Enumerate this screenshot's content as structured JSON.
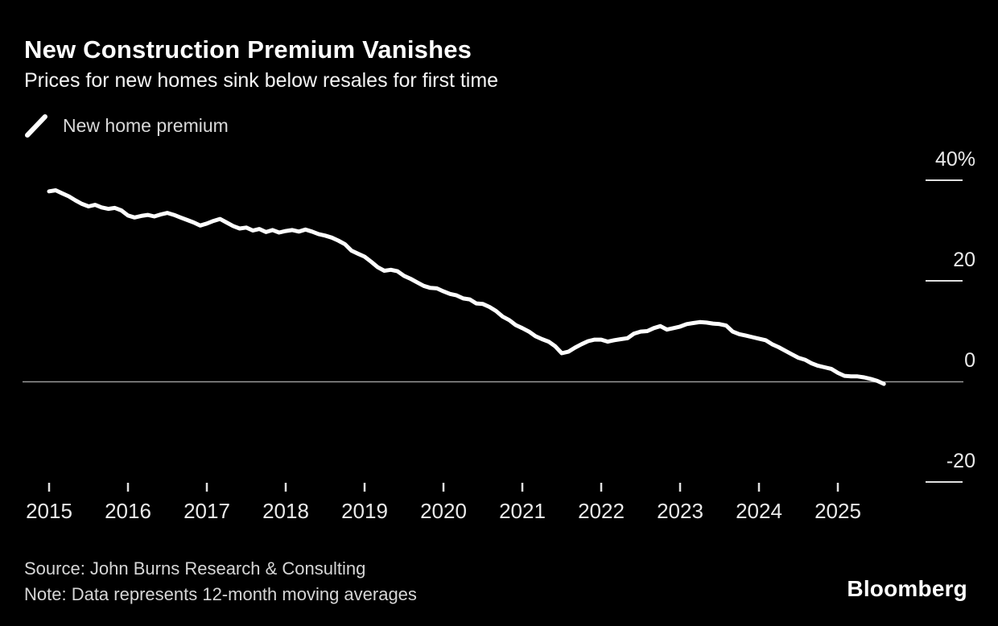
{
  "chart_data": {
    "type": "line",
    "title": "New Construction Premium Vanishes",
    "subtitle": "Prices for new homes sink below resales for first time",
    "legend": [
      {
        "label": "New home premium",
        "color": "#ffffff",
        "marker": "diagonal-line"
      }
    ],
    "legend_position": "top-left",
    "axis_side": "right",
    "grid": "zero-line-only",
    "unit": "%",
    "x_ticks": [
      "2015",
      "2016",
      "2017",
      "2018",
      "2019",
      "2020",
      "2021",
      "2022",
      "2023",
      "2024",
      "2025"
    ],
    "y_ticks": [
      {
        "value": 40,
        "label": "40%"
      },
      {
        "value": 20,
        "label": "20"
      },
      {
        "value": 0,
        "label": "0"
      },
      {
        "value": -20,
        "label": "-20"
      }
    ],
    "ylim": [
      -25,
      45
    ],
    "xlim_years": [
      2015.0,
      2025.67
    ],
    "series": [
      {
        "name": "New home premium",
        "frequency": "monthly",
        "start": "2015-01",
        "end": "2025-08",
        "values": [
          37.8,
          38.0,
          37.4,
          36.8,
          36.0,
          35.3,
          34.8,
          35.1,
          34.6,
          34.3,
          34.5,
          34.0,
          33.0,
          32.6,
          32.9,
          33.1,
          32.8,
          33.2,
          33.5,
          33.1,
          32.6,
          32.1,
          31.6,
          31.0,
          31.4,
          31.9,
          32.3,
          31.6,
          30.9,
          30.4,
          30.6,
          30.0,
          30.3,
          29.7,
          30.1,
          29.6,
          29.9,
          30.1,
          29.8,
          30.2,
          29.8,
          29.3,
          29.0,
          28.6,
          28.0,
          27.3,
          26.0,
          25.4,
          24.8,
          23.8,
          22.7,
          22.0,
          22.2,
          21.9,
          21.0,
          20.4,
          19.7,
          19.0,
          18.6,
          18.5,
          17.9,
          17.4,
          17.1,
          16.5,
          16.3,
          15.5,
          15.4,
          14.8,
          14.0,
          12.9,
          12.2,
          11.2,
          10.6,
          9.9,
          9.0,
          8.4,
          7.9,
          7.0,
          5.6,
          5.9,
          6.7,
          7.4,
          8.0,
          8.3,
          8.3,
          7.9,
          8.2,
          8.4,
          8.6,
          9.5,
          9.9,
          10.0,
          10.6,
          11.0,
          10.3,
          10.6,
          10.9,
          11.4,
          11.6,
          11.8,
          11.7,
          11.5,
          11.4,
          11.1,
          9.9,
          9.4,
          9.1,
          8.8,
          8.5,
          8.2,
          7.4,
          6.8,
          6.1,
          5.4,
          4.7,
          4.3,
          3.6,
          3.1,
          2.8,
          2.5,
          1.7,
          1.1,
          1.0,
          1.0,
          0.8,
          0.5,
          0.1,
          -0.5
        ]
      }
    ]
  },
  "colors": {
    "background": "#000000",
    "line": "#ffffff",
    "zero_line": "#9a9a9a",
    "tick": "#e0e0e0",
    "axis_text": "#eaeaea"
  },
  "footer": {
    "source": "Source: John Burns Research & Consulting",
    "note": "Note: Data represents 12-month moving averages",
    "brand": "Bloomberg"
  }
}
